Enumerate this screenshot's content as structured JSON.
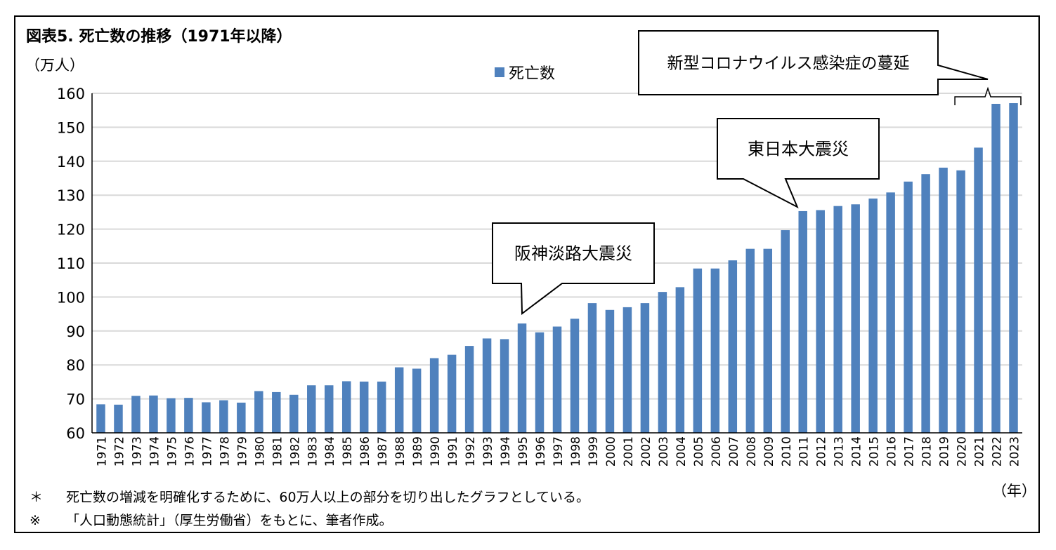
{
  "title": "図表5. 死亡数の推移（1971年以降）",
  "y_unit_label": "（万人）",
  "x_unit_label": "（年）",
  "notes": [
    {
      "mark": "＊",
      "text": "死亡数の増減を明確化するために、60万人以上の部分を切り出したグラフとしている。"
    },
    {
      "mark": "※",
      "text": "「人口動態統計」（厚生労働省）をもとに、筆者作成。"
    }
  ],
  "colors": {
    "bar": "#4f81bd",
    "grid": "#d9d9d9",
    "axis": "#000000"
  },
  "chart_data": {
    "type": "bar",
    "title": "図表5. 死亡数の推移（1971年以降）",
    "ylabel": "（万人）",
    "xlabel": "（年）",
    "ylim": [
      60,
      160
    ],
    "yticks": [
      60,
      70,
      80,
      90,
      100,
      110,
      120,
      130,
      140,
      150,
      160
    ],
    "grid": true,
    "legend": "top-center",
    "categories": [
      "1971",
      "1972",
      "1973",
      "1974",
      "1975",
      "1976",
      "1977",
      "1978",
      "1979",
      "1980",
      "1981",
      "1982",
      "1983",
      "1984",
      "1985",
      "1986",
      "1987",
      "1988",
      "1989",
      "1990",
      "1991",
      "1992",
      "1993",
      "1994",
      "1995",
      "1996",
      "1997",
      "1998",
      "1999",
      "2000",
      "2001",
      "2002",
      "2003",
      "2004",
      "2005",
      "2006",
      "2007",
      "2008",
      "2009",
      "2010",
      "2011",
      "2012",
      "2013",
      "2014",
      "2015",
      "2016",
      "2017",
      "2018",
      "2019",
      "2020",
      "2021",
      "2022",
      "2023"
    ],
    "series": [
      {
        "name": "死亡数",
        "values": [
          68.4,
          68.3,
          70.9,
          71.0,
          70.2,
          70.3,
          69.0,
          69.6,
          68.9,
          72.3,
          72.0,
          71.2,
          74.0,
          74.0,
          75.2,
          75.1,
          75.1,
          79.3,
          78.9,
          82.0,
          83.0,
          85.6,
          87.8,
          87.6,
          92.2,
          89.6,
          91.3,
          93.6,
          98.2,
          96.2,
          97.0,
          98.2,
          101.5,
          102.9,
          108.4,
          108.4,
          110.8,
          114.2,
          114.2,
          119.7,
          125.3,
          125.6,
          126.8,
          127.3,
          129.0,
          130.8,
          134.0,
          136.2,
          138.1,
          137.3,
          144.0,
          156.9,
          157.1
        ]
      }
    ],
    "annotations": [
      {
        "text": "阪神淡路大震災",
        "category": "1995"
      },
      {
        "text": "東日本大震災",
        "category": "2011"
      },
      {
        "text": "新型コロナウイルス感染症の蔓延",
        "categories": [
          "2020",
          "2023"
        ]
      }
    ]
  }
}
